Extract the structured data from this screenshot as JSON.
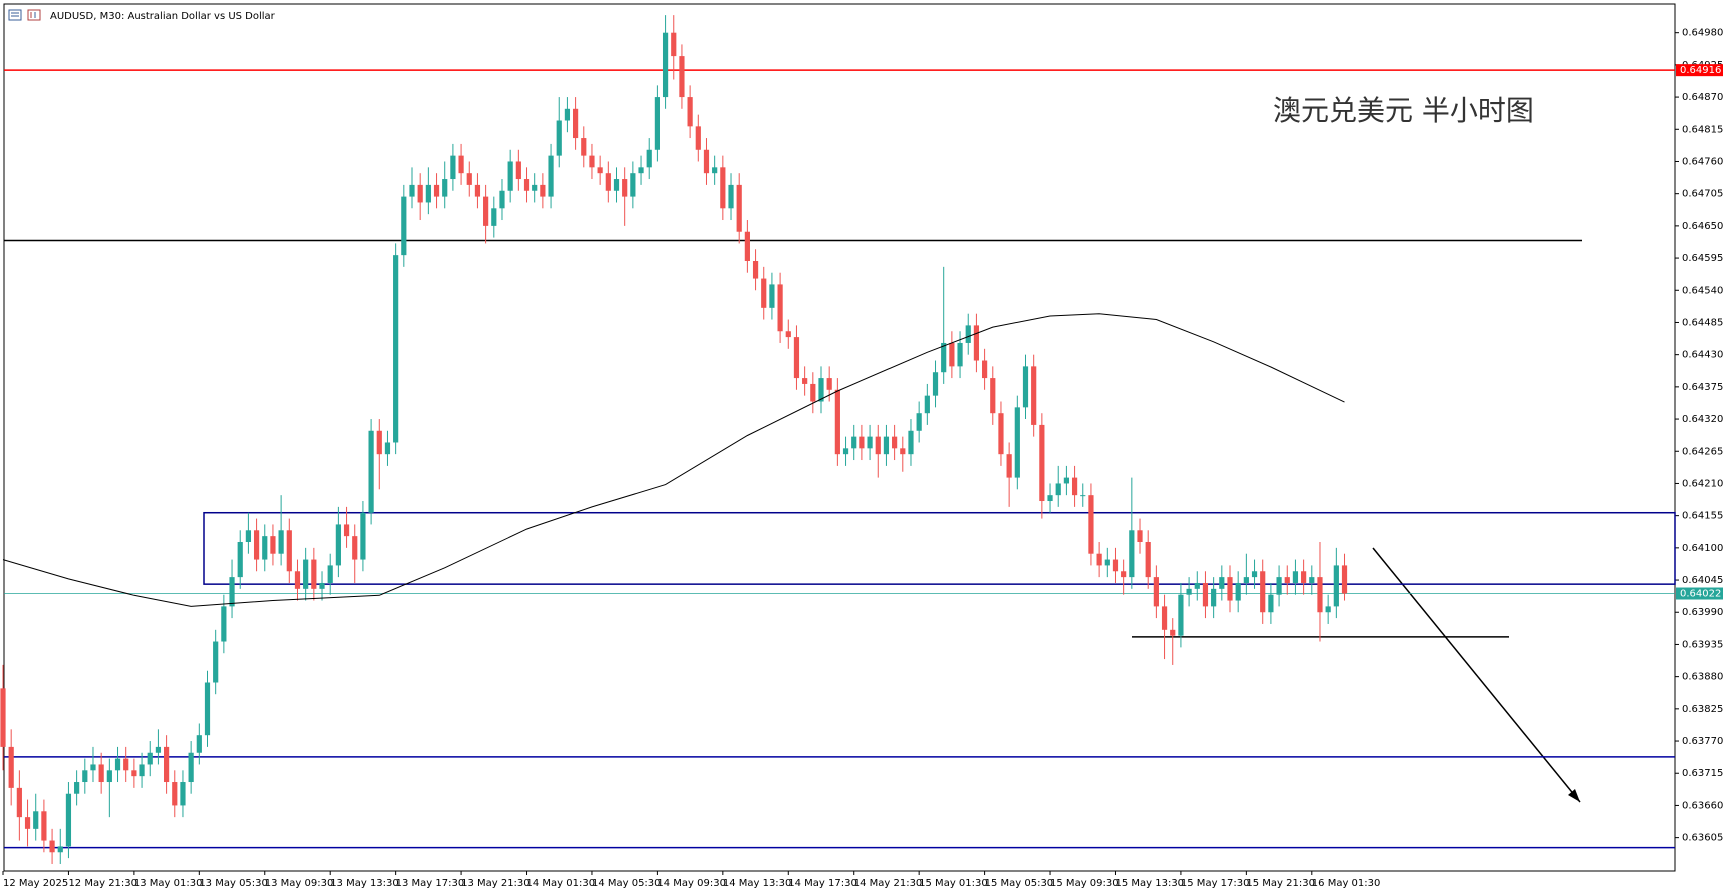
{
  "chart_data": {
    "type": "candlestick",
    "title": "AUDUSD, M30:  Australian Dollar vs US Dollar",
    "annotation": "澳元兑美元 半小时图",
    "up_color": "#26a69a",
    "down_color": "#ef5350",
    "categories": [
      "12 May 2025",
      null,
      null,
      null,
      null,
      null,
      null,
      null,
      "12 May 21:30",
      null,
      null,
      null,
      null,
      null,
      null,
      null,
      "13 May 01:30",
      null,
      null,
      null,
      null,
      null,
      null,
      null,
      "13 May 05:30",
      null,
      null,
      null,
      null,
      null,
      null,
      null,
      "13 May 09:30",
      null,
      null,
      null,
      null,
      null,
      null,
      null,
      "13 May 13:30",
      null,
      null,
      null,
      null,
      null,
      null,
      null,
      "13 May 17:30",
      null,
      null,
      null,
      null,
      null,
      null,
      null,
      "13 May 21:30",
      null,
      null,
      null,
      null,
      null,
      null,
      null,
      "14 May 01:30",
      null,
      null,
      null,
      null,
      null,
      null,
      null,
      "14 May 05:30",
      null,
      null,
      null,
      null,
      null,
      null,
      null,
      "14 May 09:30",
      null,
      null,
      null,
      null,
      null,
      null,
      null,
      "14 May 13:30",
      null,
      null,
      null,
      null,
      null,
      null,
      null,
      "14 May 17:30",
      null,
      null,
      null,
      null,
      null,
      null,
      null,
      "14 May 21:30",
      null,
      null,
      null,
      null,
      null,
      null,
      null,
      "15 May 01:30",
      null,
      null,
      null,
      null,
      null,
      null,
      null,
      "15 May 05:30",
      null,
      null,
      null,
      null,
      null,
      null,
      null,
      "15 May 09:30",
      null,
      null,
      null,
      null,
      null,
      null,
      null,
      "15 May 13:30",
      null,
      null,
      null,
      null,
      null,
      null,
      null,
      "15 May 17:30",
      null,
      null,
      null,
      null,
      null,
      null,
      null,
      "15 May 21:30",
      null,
      null,
      null,
      null,
      null,
      null,
      null,
      "16 May 01:30",
      null,
      null,
      null,
      null
    ],
    "candles": [
      [
        0.6386,
        0.639,
        0.6372,
        0.6376
      ],
      [
        0.6376,
        0.6379,
        0.6366,
        0.6369
      ],
      [
        0.6369,
        0.6372,
        0.636,
        0.6364
      ],
      [
        0.6364,
        0.6367,
        0.6359,
        0.6362
      ],
      [
        0.6362,
        0.6368,
        0.636,
        0.6365
      ],
      [
        0.6365,
        0.6367,
        0.6358,
        0.636
      ],
      [
        0.636,
        0.6362,
        0.6356,
        0.6358
      ],
      [
        0.6358,
        0.6362,
        0.6356,
        0.6359
      ],
      [
        0.6359,
        0.637,
        0.6357,
        0.6368
      ],
      [
        0.6368,
        0.6372,
        0.6366,
        0.637
      ],
      [
        0.637,
        0.6374,
        0.6368,
        0.6372
      ],
      [
        0.6372,
        0.6376,
        0.637,
        0.6373
      ],
      [
        0.6373,
        0.6375,
        0.6368,
        0.637
      ],
      [
        0.637,
        0.6374,
        0.6364,
        0.6372
      ],
      [
        0.6372,
        0.6376,
        0.637,
        0.6374
      ],
      [
        0.6374,
        0.6376,
        0.637,
        0.6372
      ],
      [
        0.6372,
        0.6374,
        0.6369,
        0.6371
      ],
      [
        0.6371,
        0.6375,
        0.6369,
        0.6373
      ],
      [
        0.6373,
        0.6377,
        0.6371,
        0.6375
      ],
      [
        0.6375,
        0.6379,
        0.6373,
        0.6376
      ],
      [
        0.6376,
        0.6378,
        0.6368,
        0.637
      ],
      [
        0.637,
        0.6372,
        0.6364,
        0.6366
      ],
      [
        0.6366,
        0.6372,
        0.6364,
        0.637
      ],
      [
        0.637,
        0.6377,
        0.6368,
        0.6375
      ],
      [
        0.6375,
        0.638,
        0.6373,
        0.6378
      ],
      [
        0.6378,
        0.6389,
        0.6376,
        0.6387
      ],
      [
        0.6387,
        0.6396,
        0.6385,
        0.6394
      ],
      [
        0.6394,
        0.6402,
        0.6392,
        0.64
      ],
      [
        0.64,
        0.6408,
        0.6398,
        0.6405
      ],
      [
        0.6405,
        0.6413,
        0.6403,
        0.6411
      ],
      [
        0.6411,
        0.6416,
        0.6409,
        0.6413
      ],
      [
        0.6413,
        0.6415,
        0.6406,
        0.6408
      ],
      [
        0.6408,
        0.6414,
        0.6406,
        0.6412
      ],
      [
        0.6412,
        0.6414,
        0.6407,
        0.6409
      ],
      [
        0.6409,
        0.6419,
        0.6407,
        0.6413
      ],
      [
        0.6413,
        0.6415,
        0.6404,
        0.6406
      ],
      [
        0.6406,
        0.6408,
        0.6401,
        0.6403
      ],
      [
        0.6403,
        0.641,
        0.6401,
        0.6408
      ],
      [
        0.6408,
        0.641,
        0.6401,
        0.6403
      ],
      [
        0.6403,
        0.6406,
        0.6401,
        0.6404
      ],
      [
        0.6404,
        0.6409,
        0.6402,
        0.6407
      ],
      [
        0.6407,
        0.6417,
        0.6405,
        0.6414
      ],
      [
        0.6414,
        0.6417,
        0.641,
        0.6412
      ],
      [
        0.6412,
        0.6414,
        0.6404,
        0.6408
      ],
      [
        0.6408,
        0.6418,
        0.6406,
        0.6416
      ],
      [
        0.6416,
        0.6432,
        0.6414,
        0.643
      ],
      [
        0.643,
        0.6432,
        0.642,
        0.6426
      ],
      [
        0.6426,
        0.643,
        0.6424,
        0.6428
      ],
      [
        0.6428,
        0.6462,
        0.6426,
        0.646
      ],
      [
        0.646,
        0.6472,
        0.6458,
        0.647
      ],
      [
        0.647,
        0.6475,
        0.6468,
        0.6472
      ],
      [
        0.6472,
        0.6474,
        0.6466,
        0.6469
      ],
      [
        0.6469,
        0.6475,
        0.6467,
        0.6472
      ],
      [
        0.6472,
        0.6474,
        0.6468,
        0.647
      ],
      [
        0.647,
        0.6476,
        0.6468,
        0.6473
      ],
      [
        0.6473,
        0.6479,
        0.6471,
        0.6477
      ],
      [
        0.6477,
        0.6479,
        0.6472,
        0.6474
      ],
      [
        0.6474,
        0.6476,
        0.647,
        0.6472
      ],
      [
        0.6472,
        0.6474,
        0.6468,
        0.647
      ],
      [
        0.647,
        0.6472,
        0.6462,
        0.6465
      ],
      [
        0.6465,
        0.647,
        0.6463,
        0.6468
      ],
      [
        0.6468,
        0.6473,
        0.6466,
        0.6471
      ],
      [
        0.6471,
        0.6478,
        0.6469,
        0.6476
      ],
      [
        0.6476,
        0.6478,
        0.6471,
        0.6473
      ],
      [
        0.6473,
        0.6475,
        0.6469,
        0.6471
      ],
      [
        0.6471,
        0.6474,
        0.6469,
        0.6472
      ],
      [
        0.6472,
        0.6474,
        0.6468,
        0.647
      ],
      [
        0.647,
        0.6479,
        0.6468,
        0.6477
      ],
      [
        0.6477,
        0.6487,
        0.6475,
        0.6483
      ],
      [
        0.6483,
        0.6487,
        0.6481,
        0.6485
      ],
      [
        0.6485,
        0.6487,
        0.6478,
        0.648
      ],
      [
        0.648,
        0.6482,
        0.6475,
        0.6477
      ],
      [
        0.6477,
        0.6479,
        0.6473,
        0.6475
      ],
      [
        0.6475,
        0.6477,
        0.6472,
        0.6474
      ],
      [
        0.6474,
        0.6476,
        0.6469,
        0.6471
      ],
      [
        0.6471,
        0.6475,
        0.6469,
        0.6473
      ],
      [
        0.6473,
        0.6475,
        0.6465,
        0.647
      ],
      [
        0.647,
        0.6476,
        0.6468,
        0.6474
      ],
      [
        0.6474,
        0.6477,
        0.6472,
        0.6475
      ],
      [
        0.6475,
        0.648,
        0.6473,
        0.6478
      ],
      [
        0.6478,
        0.6489,
        0.6476,
        0.6487
      ],
      [
        0.6487,
        0.6501,
        0.6485,
        0.6498
      ],
      [
        0.6498,
        0.6501,
        0.649,
        0.6494
      ],
      [
        0.6494,
        0.6496,
        0.6485,
        0.6487
      ],
      [
        0.6487,
        0.6489,
        0.648,
        0.6482
      ],
      [
        0.6482,
        0.6484,
        0.6476,
        0.6478
      ],
      [
        0.6478,
        0.648,
        0.6472,
        0.6474
      ],
      [
        0.6474,
        0.6477,
        0.6472,
        0.6475
      ],
      [
        0.6475,
        0.6477,
        0.6466,
        0.6468
      ],
      [
        0.6468,
        0.6474,
        0.6466,
        0.6472
      ],
      [
        0.6472,
        0.6474,
        0.6462,
        0.6464
      ],
      [
        0.6464,
        0.6466,
        0.6457,
        0.6459
      ],
      [
        0.6459,
        0.6461,
        0.6454,
        0.6456
      ],
      [
        0.6456,
        0.6458,
        0.6449,
        0.6451
      ],
      [
        0.6451,
        0.6457,
        0.6449,
        0.6455
      ],
      [
        0.6455,
        0.6457,
        0.6445,
        0.6447
      ],
      [
        0.6447,
        0.6449,
        0.6444,
        0.6446
      ],
      [
        0.6446,
        0.6448,
        0.6437,
        0.6439
      ],
      [
        0.6439,
        0.6441,
        0.6436,
        0.6438
      ],
      [
        0.6438,
        0.644,
        0.6433,
        0.6435
      ],
      [
        0.6435,
        0.6441,
        0.6433,
        0.6439
      ],
      [
        0.6439,
        0.6441,
        0.6435,
        0.6437
      ],
      [
        0.6437,
        0.6439,
        0.6424,
        0.6426
      ],
      [
        0.6426,
        0.6429,
        0.6424,
        0.6427
      ],
      [
        0.6427,
        0.6431,
        0.6425,
        0.6429
      ],
      [
        0.6429,
        0.6431,
        0.6425,
        0.6427
      ],
      [
        0.6427,
        0.6431,
        0.6425,
        0.6429
      ],
      [
        0.6429,
        0.6431,
        0.6422,
        0.6426
      ],
      [
        0.6426,
        0.6431,
        0.6424,
        0.6429
      ],
      [
        0.6429,
        0.6431,
        0.6425,
        0.6427
      ],
      [
        0.6427,
        0.6429,
        0.6423,
        0.6426
      ],
      [
        0.6426,
        0.6432,
        0.6424,
        0.643
      ],
      [
        0.643,
        0.6435,
        0.6428,
        0.6433
      ],
      [
        0.6433,
        0.6438,
        0.6431,
        0.6436
      ],
      [
        0.6436,
        0.6442,
        0.6434,
        0.644
      ],
      [
        0.644,
        0.6458,
        0.6438,
        0.6445
      ],
      [
        0.6445,
        0.6447,
        0.6439,
        0.6441
      ],
      [
        0.6441,
        0.6447,
        0.6439,
        0.6445
      ],
      [
        0.6445,
        0.645,
        0.6443,
        0.6448
      ],
      [
        0.6448,
        0.645,
        0.644,
        0.6442
      ],
      [
        0.6442,
        0.6444,
        0.6437,
        0.6439
      ],
      [
        0.6439,
        0.6441,
        0.6431,
        0.6433
      ],
      [
        0.6433,
        0.6435,
        0.6424,
        0.6426
      ],
      [
        0.6426,
        0.6428,
        0.6417,
        0.6422
      ],
      [
        0.6422,
        0.6436,
        0.642,
        0.6434
      ],
      [
        0.6434,
        0.6443,
        0.6432,
        0.6441
      ],
      [
        0.6441,
        0.6443,
        0.6429,
        0.6431
      ],
      [
        0.6431,
        0.6433,
        0.6415,
        0.6418
      ],
      [
        0.6418,
        0.6421,
        0.6416,
        0.6419
      ],
      [
        0.6419,
        0.6424,
        0.6417,
        0.6421
      ],
      [
        0.6421,
        0.6424,
        0.6419,
        0.6422
      ],
      [
        0.6422,
        0.6424,
        0.6417,
        0.6419
      ],
      [
        0.6419,
        0.6421,
        0.6417,
        0.6419
      ],
      [
        0.6419,
        0.6421,
        0.6407,
        0.6409
      ],
      [
        0.6409,
        0.6411,
        0.6405,
        0.6407
      ],
      [
        0.6407,
        0.641,
        0.6405,
        0.6408
      ],
      [
        0.6408,
        0.641,
        0.6404,
        0.6406
      ],
      [
        0.6406,
        0.6408,
        0.6402,
        0.6405
      ],
      [
        0.6405,
        0.6422,
        0.6403,
        0.6413
      ],
      [
        0.6413,
        0.6415,
        0.6409,
        0.6411
      ],
      [
        0.6411,
        0.6413,
        0.6403,
        0.6405
      ],
      [
        0.6405,
        0.6407,
        0.6398,
        0.64
      ],
      [
        0.64,
        0.6402,
        0.6391,
        0.6396
      ],
      [
        0.6396,
        0.6398,
        0.639,
        0.6395
      ],
      [
        0.6395,
        0.6404,
        0.6393,
        0.6402
      ],
      [
        0.6402,
        0.6405,
        0.64,
        0.6403
      ],
      [
        0.6403,
        0.6406,
        0.6401,
        0.6404
      ],
      [
        0.6404,
        0.6406,
        0.6398,
        0.64
      ],
      [
        0.64,
        0.6405,
        0.6398,
        0.6403
      ],
      [
        0.6403,
        0.6407,
        0.6401,
        0.6405
      ],
      [
        0.6405,
        0.6407,
        0.6399,
        0.6401
      ],
      [
        0.6401,
        0.6406,
        0.6399,
        0.6404
      ],
      [
        0.6404,
        0.6409,
        0.6402,
        0.6405
      ],
      [
        0.6405,
        0.6408,
        0.6403,
        0.6406
      ],
      [
        0.6406,
        0.6408,
        0.6397,
        0.6399
      ],
      [
        0.6399,
        0.6404,
        0.6397,
        0.6402
      ],
      [
        0.6402,
        0.6407,
        0.64,
        0.6405
      ],
      [
        0.6405,
        0.6407,
        0.6402,
        0.6404
      ],
      [
        0.6404,
        0.6408,
        0.6402,
        0.6406
      ],
      [
        0.6406,
        0.6408,
        0.6402,
        0.6404
      ],
      [
        0.6404,
        0.6407,
        0.6402,
        0.6405
      ],
      [
        0.6405,
        0.6411,
        0.6394,
        0.6399
      ],
      [
        0.6399,
        0.6402,
        0.6397,
        0.64
      ],
      [
        0.64,
        0.641,
        0.6398,
        0.6407
      ],
      [
        0.6407,
        0.6409,
        0.6401,
        0.64022
      ]
    ],
    "moving_average": {
      "color": "#000000",
      "x": [
        0,
        8,
        16,
        23,
        33,
        46,
        54,
        64,
        72,
        81,
        91,
        102,
        113,
        121,
        128,
        134,
        141,
        148,
        155,
        164
      ],
      "values": [
        0.6408,
        0.64047,
        0.64019,
        0.64,
        0.6401,
        0.64019,
        0.64066,
        0.64132,
        0.6417,
        0.64208,
        0.64292,
        0.64368,
        0.64434,
        0.64477,
        0.64496,
        0.645,
        0.6449,
        0.64452,
        0.64409,
        0.64349
      ]
    },
    "levels": [
      {
        "value": 0.64916,
        "color": "#ff0000"
      },
      {
        "value": 0.64625,
        "color": "#000000"
      },
      {
        "value": 0.63743,
        "color": "#0000a0"
      },
      {
        "value": 0.63588,
        "color": "#0000a0"
      },
      {
        "value": 0.63948,
        "color": "#000000"
      }
    ],
    "zone": {
      "values": [
        0.64038,
        0.6416
      ],
      "color": "#00008b"
    },
    "current_price": 0.64022,
    "current_color": "#26a69a",
    "ylim": [
      0.63548,
      0.65029
    ],
    "yticks": [
      0.63605,
      {
        "value": 0.6366,
        "label": "0.63660"
      },
      0.63715,
      {
        "value": 0.6377,
        "label": "0.63770"
      },
      0.63825,
      {
        "value": 0.6388,
        "label": "0.63880"
      },
      0.63935,
      {
        "value": 0.6399,
        "label": "0.63990"
      },
      0.64045,
      {
        "value": 0.641,
        "label": "0.64100"
      },
      0.64155,
      {
        "value": 0.6421,
        "label": "0.64210"
      },
      0.64265,
      {
        "value": 0.6432,
        "label": "0.64320"
      },
      0.64375,
      {
        "value": 0.6443,
        "label": "0.64430"
      },
      0.64485,
      {
        "value": 0.6454,
        "label": "0.64540"
      },
      0.64595,
      {
        "value": 0.6465,
        "label": "0.64650"
      },
      0.64705,
      {
        "value": 0.6476,
        "label": "0.64760"
      },
      0.64815,
      {
        "value": 0.6487,
        "label": "0.64870"
      },
      0.64925,
      {
        "value": 0.6498,
        "label": "0.64980"
      }
    ]
  }
}
